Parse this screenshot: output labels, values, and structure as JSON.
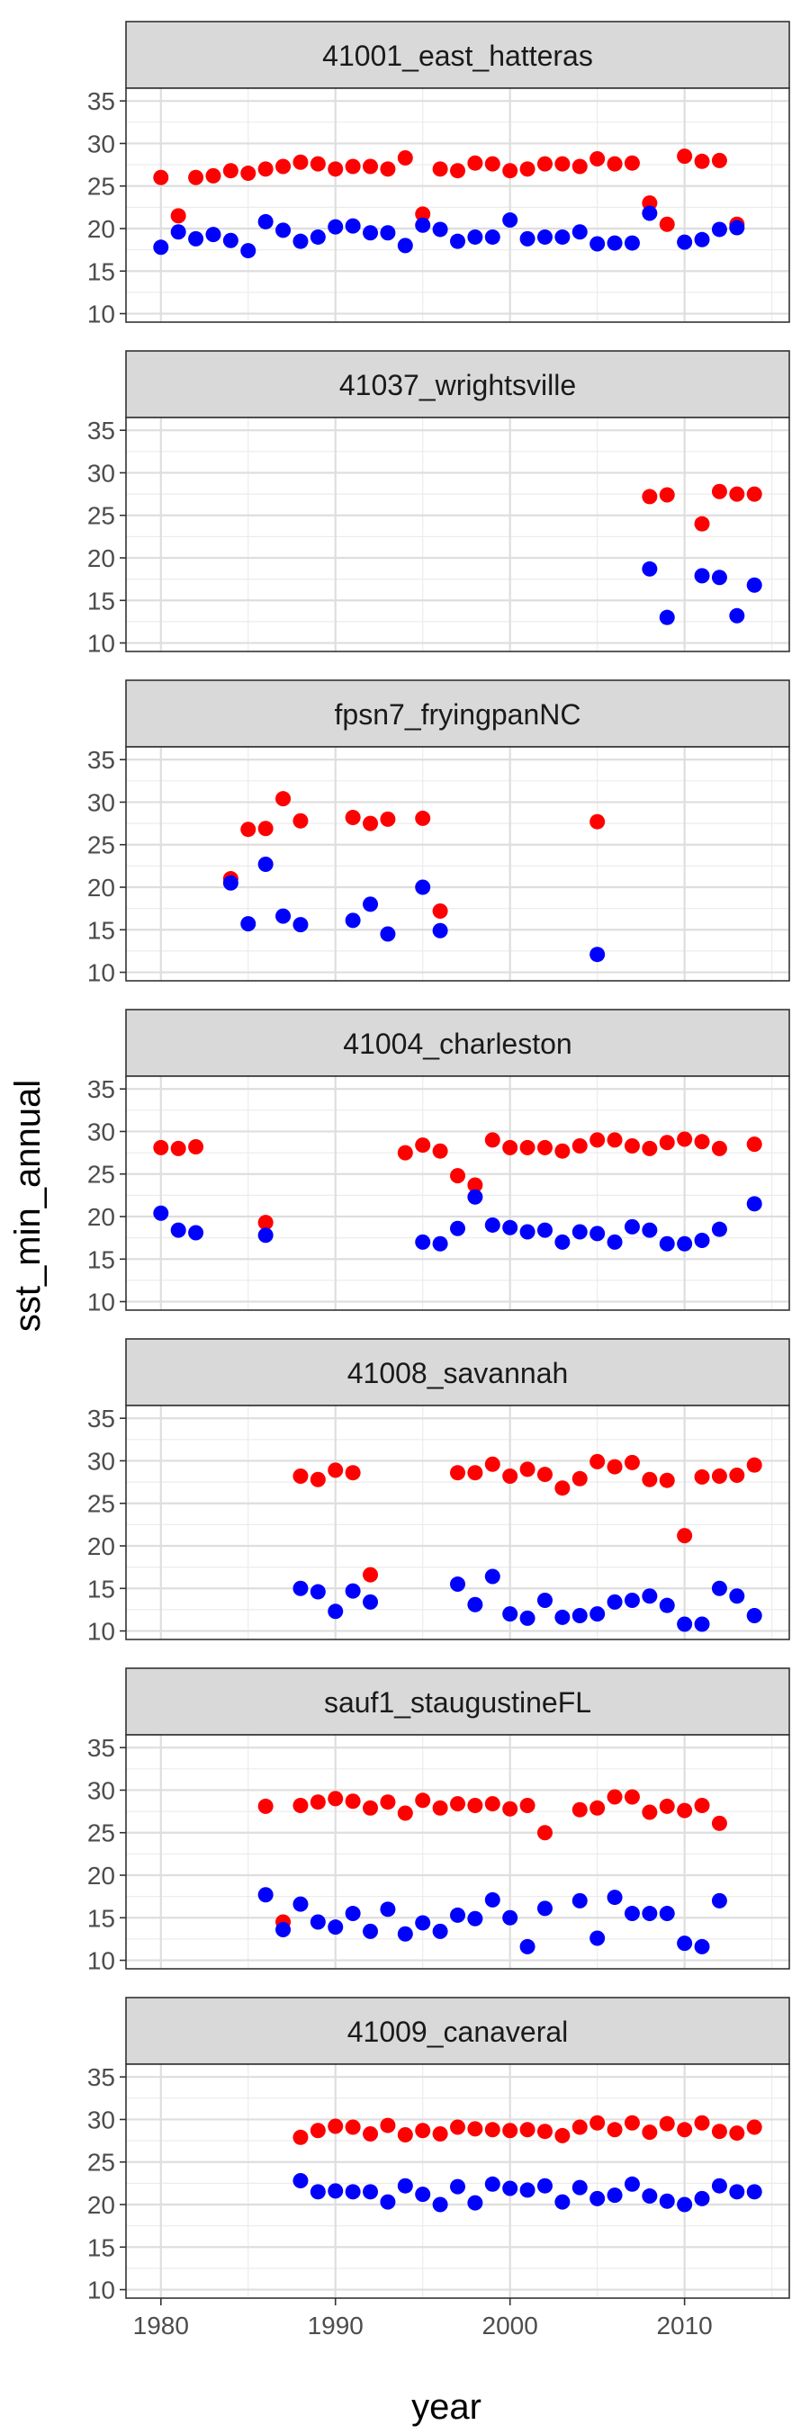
{
  "chart_data": {
    "type": "scatter",
    "xlabel": "year",
    "ylabel": "sst_min_annual",
    "xlim": [
      1978,
      2016
    ],
    "ylim": [
      9,
      36.5
    ],
    "x_ticks": [
      1980,
      1990,
      2000,
      2010
    ],
    "y_ticks": [
      10,
      15,
      20,
      25,
      30,
      35
    ],
    "grid": true,
    "legend": "none",
    "series_colors": {
      "high": "#ff0000",
      "low": "#0000ff"
    },
    "panels": [
      {
        "name": "41001_east_hatteras",
        "red": [
          [
            1980,
            26
          ],
          [
            1981,
            21.5
          ],
          [
            1982,
            26
          ],
          [
            1983,
            26.2
          ],
          [
            1984,
            26.8
          ],
          [
            1985,
            26.5
          ],
          [
            1986,
            27
          ],
          [
            1987,
            27.3
          ],
          [
            1988,
            27.8
          ],
          [
            1989,
            27.6
          ],
          [
            1990,
            27
          ],
          [
            1991,
            27.3
          ],
          [
            1992,
            27.3
          ],
          [
            1993,
            27
          ],
          [
            1994,
            28.3
          ],
          [
            1995,
            21.7
          ],
          [
            1996,
            27
          ],
          [
            1997,
            26.8
          ],
          [
            1998,
            27.7
          ],
          [
            1999,
            27.6
          ],
          [
            2000,
            26.8
          ],
          [
            2001,
            27
          ],
          [
            2002,
            27.6
          ],
          [
            2003,
            27.6
          ],
          [
            2004,
            27.3
          ],
          [
            2005,
            28.2
          ],
          [
            2006,
            27.6
          ],
          [
            2007,
            27.7
          ],
          [
            2008,
            23
          ],
          [
            2009,
            20.5
          ],
          [
            2010,
            28.5
          ],
          [
            2011,
            27.9
          ],
          [
            2012,
            28
          ],
          [
            2013,
            20.5
          ]
        ],
        "blue": [
          [
            1980,
            17.8
          ],
          [
            1981,
            19.6
          ],
          [
            1982,
            18.8
          ],
          [
            1983,
            19.3
          ],
          [
            1984,
            18.6
          ],
          [
            1985,
            17.4
          ],
          [
            1986,
            20.8
          ],
          [
            1987,
            19.8
          ],
          [
            1988,
            18.5
          ],
          [
            1989,
            19
          ],
          [
            1990,
            20.2
          ],
          [
            1991,
            20.3
          ],
          [
            1992,
            19.5
          ],
          [
            1993,
            19.5
          ],
          [
            1994,
            18
          ],
          [
            1995,
            20.4
          ],
          [
            1996,
            19.9
          ],
          [
            1997,
            18.5
          ],
          [
            1998,
            19
          ],
          [
            1999,
            19
          ],
          [
            2000,
            21
          ],
          [
            2001,
            18.8
          ],
          [
            2002,
            19
          ],
          [
            2003,
            19
          ],
          [
            2004,
            19.6
          ],
          [
            2005,
            18.2
          ],
          [
            2006,
            18.3
          ],
          [
            2007,
            18.3
          ],
          [
            2008,
            21.8
          ],
          [
            2010,
            18.4
          ],
          [
            2011,
            18.7
          ],
          [
            2012,
            19.9
          ],
          [
            2013,
            20.1
          ]
        ]
      },
      {
        "name": "41037_wrightsville",
        "red": [
          [
            2008,
            27.2
          ],
          [
            2009,
            27.4
          ],
          [
            2011,
            24
          ],
          [
            2012,
            27.8
          ],
          [
            2013,
            27.5
          ],
          [
            2014,
            27.5
          ]
        ],
        "blue": [
          [
            2008,
            18.7
          ],
          [
            2009,
            13
          ],
          [
            2011,
            17.9
          ],
          [
            2012,
            17.7
          ],
          [
            2013,
            13.2
          ],
          [
            2014,
            16.8
          ]
        ]
      },
      {
        "name": "fpsn7_fryingpanNC",
        "red": [
          [
            1984,
            21
          ],
          [
            1985,
            26.8
          ],
          [
            1986,
            26.9
          ],
          [
            1987,
            30.4
          ],
          [
            1988,
            27.8
          ],
          [
            1991,
            28.2
          ],
          [
            1992,
            27.5
          ],
          [
            1993,
            28
          ],
          [
            1995,
            28.1
          ],
          [
            1996,
            17.2
          ],
          [
            2005,
            27.7
          ]
        ],
        "blue": [
          [
            1984,
            20.5
          ],
          [
            1985,
            15.7
          ],
          [
            1986,
            22.7
          ],
          [
            1987,
            16.6
          ],
          [
            1988,
            15.6
          ],
          [
            1991,
            16.1
          ],
          [
            1992,
            18
          ],
          [
            1993,
            14.5
          ],
          [
            1995,
            20
          ],
          [
            1996,
            14.9
          ],
          [
            2005,
            12.1
          ]
        ]
      },
      {
        "name": "41004_charleston",
        "red": [
          [
            1980,
            28.1
          ],
          [
            1981,
            28
          ],
          [
            1982,
            28.2
          ],
          [
            1986,
            19.3
          ],
          [
            1994,
            27.5
          ],
          [
            1995,
            28.4
          ],
          [
            1996,
            27.7
          ],
          [
            1997,
            24.8
          ],
          [
            1998,
            23.7
          ],
          [
            1999,
            29
          ],
          [
            2000,
            28.1
          ],
          [
            2001,
            28.1
          ],
          [
            2002,
            28.1
          ],
          [
            2003,
            27.7
          ],
          [
            2004,
            28.3
          ],
          [
            2005,
            29
          ],
          [
            2006,
            29
          ],
          [
            2007,
            28.3
          ],
          [
            2008,
            28
          ],
          [
            2009,
            28.7
          ],
          [
            2010,
            29.1
          ],
          [
            2011,
            28.8
          ],
          [
            2012,
            28
          ],
          [
            2014,
            28.5
          ]
        ],
        "blue": [
          [
            1980,
            20.4
          ],
          [
            1981,
            18.4
          ],
          [
            1982,
            18.1
          ],
          [
            1986,
            17.8
          ],
          [
            1995,
            17
          ],
          [
            1996,
            16.8
          ],
          [
            1997,
            18.6
          ],
          [
            1998,
            22.3
          ],
          [
            1999,
            19
          ],
          [
            2000,
            18.7
          ],
          [
            2001,
            18.2
          ],
          [
            2002,
            18.4
          ],
          [
            2003,
            17
          ],
          [
            2004,
            18.2
          ],
          [
            2005,
            18
          ],
          [
            2006,
            17
          ],
          [
            2007,
            18.8
          ],
          [
            2008,
            18.4
          ],
          [
            2009,
            16.8
          ],
          [
            2010,
            16.8
          ],
          [
            2011,
            17.2
          ],
          [
            2012,
            18.5
          ],
          [
            2014,
            21.5
          ]
        ]
      },
      {
        "name": "41008_savannah",
        "red": [
          [
            1988,
            28.2
          ],
          [
            1989,
            27.8
          ],
          [
            1990,
            28.9
          ],
          [
            1991,
            28.6
          ],
          [
            1992,
            16.6
          ],
          [
            1997,
            28.6
          ],
          [
            1998,
            28.6
          ],
          [
            1999,
            29.6
          ],
          [
            2000,
            28.2
          ],
          [
            2001,
            29
          ],
          [
            2002,
            28.4
          ],
          [
            2003,
            26.8
          ],
          [
            2004,
            27.9
          ],
          [
            2005,
            29.9
          ],
          [
            2006,
            29.3
          ],
          [
            2007,
            29.8
          ],
          [
            2008,
            27.8
          ],
          [
            2009,
            27.7
          ],
          [
            2010,
            21.2
          ],
          [
            2011,
            28.1
          ],
          [
            2012,
            28.2
          ],
          [
            2013,
            28.3
          ],
          [
            2014,
            29.5
          ]
        ],
        "blue": [
          [
            1988,
            15
          ],
          [
            1989,
            14.6
          ],
          [
            1990,
            12.3
          ],
          [
            1991,
            14.7
          ],
          [
            1992,
            13.4
          ],
          [
            1997,
            15.5
          ],
          [
            1998,
            13.1
          ],
          [
            1999,
            16.4
          ],
          [
            2000,
            12
          ],
          [
            2001,
            11.5
          ],
          [
            2002,
            13.6
          ],
          [
            2003,
            11.6
          ],
          [
            2004,
            11.8
          ],
          [
            2005,
            12
          ],
          [
            2006,
            13.4
          ],
          [
            2007,
            13.6
          ],
          [
            2008,
            14.1
          ],
          [
            2009,
            13
          ],
          [
            2010,
            10.8
          ],
          [
            2011,
            10.8
          ],
          [
            2012,
            15
          ],
          [
            2013,
            14.1
          ],
          [
            2014,
            11.8
          ]
        ]
      },
      {
        "name": "sauf1_staugustineFL",
        "red": [
          [
            1986,
            28.1
          ],
          [
            1987,
            14.5
          ],
          [
            1988,
            28.2
          ],
          [
            1989,
            28.6
          ],
          [
            1990,
            29
          ],
          [
            1991,
            28.7
          ],
          [
            1992,
            27.9
          ],
          [
            1993,
            28.6
          ],
          [
            1994,
            27.3
          ],
          [
            1995,
            28.8
          ],
          [
            1996,
            27.9
          ],
          [
            1997,
            28.4
          ],
          [
            1998,
            28.2
          ],
          [
            1999,
            28.4
          ],
          [
            2000,
            27.8
          ],
          [
            2001,
            28.2
          ],
          [
            2002,
            25
          ],
          [
            2004,
            27.7
          ],
          [
            2005,
            27.9
          ],
          [
            2006,
            29.2
          ],
          [
            2007,
            29.2
          ],
          [
            2008,
            27.4
          ],
          [
            2009,
            28.1
          ],
          [
            2010,
            27.6
          ],
          [
            2011,
            28.2
          ],
          [
            2012,
            26.1
          ]
        ],
        "blue": [
          [
            1986,
            17.7
          ],
          [
            1987,
            13.6
          ],
          [
            1988,
            16.6
          ],
          [
            1989,
            14.5
          ],
          [
            1990,
            13.9
          ],
          [
            1991,
            15.5
          ],
          [
            1992,
            13.4
          ],
          [
            1993,
            16
          ],
          [
            1994,
            13.1
          ],
          [
            1995,
            14.4
          ],
          [
            1996,
            13.4
          ],
          [
            1997,
            15.3
          ],
          [
            1998,
            14.9
          ],
          [
            1999,
            17.1
          ],
          [
            2000,
            15
          ],
          [
            2001,
            11.6
          ],
          [
            2002,
            16.1
          ],
          [
            2004,
            17
          ],
          [
            2005,
            12.6
          ],
          [
            2006,
            17.4
          ],
          [
            2007,
            15.5
          ],
          [
            2008,
            15.5
          ],
          [
            2009,
            15.5
          ],
          [
            2010,
            12
          ],
          [
            2011,
            11.6
          ],
          [
            2012,
            17
          ]
        ]
      },
      {
        "name": "41009_canaveral",
        "red": [
          [
            1988,
            27.9
          ],
          [
            1989,
            28.7
          ],
          [
            1990,
            29.2
          ],
          [
            1991,
            29.1
          ],
          [
            1992,
            28.3
          ],
          [
            1993,
            29.3
          ],
          [
            1994,
            28.2
          ],
          [
            1995,
            28.7
          ],
          [
            1996,
            28.3
          ],
          [
            1997,
            29.1
          ],
          [
            1998,
            28.9
          ],
          [
            1999,
            28.8
          ],
          [
            2000,
            28.7
          ],
          [
            2001,
            28.8
          ],
          [
            2002,
            28.6
          ],
          [
            2003,
            28.1
          ],
          [
            2004,
            29.1
          ],
          [
            2005,
            29.6
          ],
          [
            2006,
            28.8
          ],
          [
            2007,
            29.6
          ],
          [
            2008,
            28.5
          ],
          [
            2009,
            29.5
          ],
          [
            2010,
            28.8
          ],
          [
            2011,
            29.6
          ],
          [
            2012,
            28.6
          ],
          [
            2013,
            28.4
          ],
          [
            2014,
            29.1
          ]
        ],
        "blue": [
          [
            1988,
            22.8
          ],
          [
            1989,
            21.5
          ],
          [
            1990,
            21.6
          ],
          [
            1991,
            21.5
          ],
          [
            1992,
            21.5
          ],
          [
            1993,
            20.3
          ],
          [
            1994,
            22.2
          ],
          [
            1995,
            21.2
          ],
          [
            1996,
            20
          ],
          [
            1997,
            22.1
          ],
          [
            1998,
            20.2
          ],
          [
            1999,
            22.4
          ],
          [
            2000,
            21.9
          ],
          [
            2001,
            21.7
          ],
          [
            2002,
            22.2
          ],
          [
            2003,
            20.3
          ],
          [
            2004,
            22
          ],
          [
            2005,
            20.7
          ],
          [
            2006,
            21.1
          ],
          [
            2007,
            22.4
          ],
          [
            2008,
            21
          ],
          [
            2009,
            20.4
          ],
          [
            2010,
            20
          ],
          [
            2011,
            20.7
          ],
          [
            2012,
            22.2
          ],
          [
            2013,
            21.5
          ],
          [
            2014,
            21.5
          ]
        ]
      }
    ]
  }
}
